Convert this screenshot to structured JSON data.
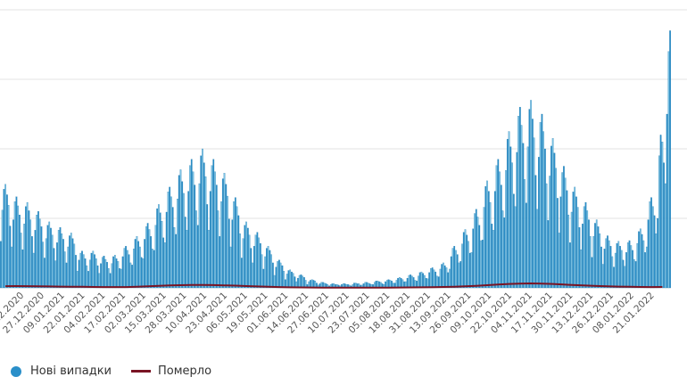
{
  "chart_data": {
    "type": "bar",
    "grid": true,
    "ylim": [
      0,
      41000
    ],
    "gridlines": [
      10000,
      20000,
      30000,
      40000
    ],
    "x_tick_labels": [
      "14.12.2020",
      "27.12.2020",
      "09.01.2021",
      "22.01.2021",
      "04.02.2021",
      "17.02.2021",
      "02.03.2021",
      "15.03.2021",
      "28.03.2021",
      "10.04.2021",
      "23.04.2021",
      "06.05.2021",
      "19.05.2021",
      "01.06.2021",
      "14.06.2021",
      "27.06.2021",
      "10.07.2021",
      "23.07.2021",
      "05.08.2021",
      "18.08.2021",
      "31.08.2021",
      "13.09.2021",
      "26.09.2021",
      "09.10.2021",
      "22.10.2021",
      "04.11.2021",
      "17.11.2021",
      "30.11.2021",
      "13.12.2021",
      "26.12.2021",
      "08.01.2022",
      "21.01.2022"
    ],
    "legend_position": "bottom-left",
    "colors": {
      "cases": "#2a8fc9",
      "cases_light": "#7cc4e6",
      "deaths": "#7a1424",
      "grid": "#e3e3e3"
    },
    "series": [
      {
        "name": "Нові випадки",
        "type": "bar",
        "resolution": "daily",
        "values": [
          6700,
          11200,
          14200,
          14900,
          13400,
          11900,
          8900,
          5900,
          9800,
          12400,
          13100,
          11800,
          10500,
          7900,
          5500,
          9200,
          11700,
          12300,
          11100,
          9800,
          7400,
          5000,
          8300,
          10500,
          11000,
          9900,
          8800,
          6600,
          4300,
          7100,
          9000,
          9500,
          8600,
          7600,
          5700,
          3900,
          6500,
          8300,
          8700,
          7800,
          7000,
          5200,
          3600,
          5900,
          7500,
          7900,
          7100,
          6300,
          4700,
          2400,
          4000,
          5000,
          5300,
          4800,
          4200,
          3200,
          2400,
          4000,
          5000,
          5300,
          4800,
          4200,
          3200,
          2100,
          3500,
          4400,
          4600,
          4100,
          3700,
          2800,
          2100,
          3500,
          4500,
          4700,
          4200,
          3800,
          2800,
          2700,
          4500,
          5700,
          6000,
          5400,
          4800,
          3600,
          3300,
          5600,
          7000,
          7400,
          6700,
          5900,
          4400,
          4200,
          7000,
          8800,
          9300,
          8400,
          7400,
          5600,
          5400,
          9000,
          11400,
          12000,
          10800,
          9600,
          7200,
          6500,
          10900,
          13800,
          14500,
          13100,
          11600,
          8700,
          7700,
          12800,
          16200,
          17000,
          15300,
          13600,
          10200,
          8300,
          13900,
          17600,
          18500,
          16700,
          14800,
          11100,
          9000,
          15000,
          19000,
          20000,
          18000,
          16000,
          12000,
          8300,
          13900,
          17600,
          18500,
          16700,
          14800,
          11100,
          7400,
          12400,
          15700,
          16500,
          14900,
          13200,
          9900,
          5900,
          9800,
          12400,
          13000,
          11700,
          10400,
          7800,
          4300,
          7100,
          9000,
          9500,
          8600,
          7600,
          5700,
          3600,
          6000,
          7600,
          8000,
          7200,
          6400,
          4800,
          2700,
          4500,
          5700,
          6000,
          5400,
          4800,
          3600,
          1800,
          3000,
          3800,
          4000,
          3600,
          3200,
          2400,
          1200,
          2000,
          2500,
          2600,
          2300,
          2100,
          1600,
          900,
          1400,
          1800,
          1900,
          1700,
          1500,
          1100,
          500,
          900,
          1100,
          1200,
          1100,
          1000,
          700,
          400,
          600,
          800,
          800,
          700,
          600,
          500,
          300,
          500,
          600,
          600,
          500,
          500,
          400,
          300,
          500,
          600,
          600,
          500,
          500,
          400,
          300,
          500,
          700,
          700,
          600,
          600,
          400,
          400,
          600,
          800,
          800,
          700,
          600,
          500,
          500,
          800,
          1000,
          1000,
          900,
          800,
          600,
          500,
          900,
          1100,
          1200,
          1100,
          1000,
          700,
          700,
          1100,
          1400,
          1500,
          1400,
          1200,
          900,
          900,
          1400,
          1800,
          1900,
          1700,
          1500,
          1100,
          1000,
          1700,
          2200,
          2300,
          2100,
          1800,
          1400,
          1300,
          2200,
          2800,
          2900,
          2600,
          2300,
          1700,
          1600,
          2700,
          3400,
          3600,
          3200,
          2900,
          2200,
          2700,
          4500,
          5700,
          6000,
          5400,
          4800,
          3600,
          3800,
          6300,
          8000,
          8400,
          7600,
          6700,
          5000,
          5100,
          8500,
          10700,
          11300,
          10200,
          9000,
          6800,
          6900,
          11600,
          14600,
          15400,
          13900,
          12300,
          9200,
          8300,
          13900,
          17600,
          18500,
          16700,
          14800,
          11100,
          10100,
          16900,
          21400,
          22500,
          20300,
          18000,
          13500,
          11700,
          19500,
          24700,
          26000,
          23400,
          20800,
          15600,
          12200,
          20300,
          25700,
          27000,
          24300,
          21600,
          16200,
          11300,
          18800,
          23800,
          25000,
          22500,
          20000,
          15000,
          9700,
          16100,
          20400,
          21500,
          19400,
          17200,
          12900,
          7900,
          13100,
          16600,
          17500,
          15800,
          14000,
          10500,
          6500,
          10900,
          13800,
          14500,
          13100,
          11600,
          8700,
          5500,
          9200,
          11700,
          12300,
          11100,
          9800,
          7400,
          4400,
          7400,
          9300,
          9800,
          8800,
          7800,
          5900,
          3400,
          5600,
          7100,
          7500,
          6800,
          6000,
          4500,
          3000,
          5000,
          6400,
          6700,
          6000,
          5400,
          4000,
          3100,
          5100,
          6500,
          6800,
          6100,
          5400,
          4100,
          3800,
          6400,
          8100,
          8500,
          7700,
          6800,
          5100,
          5900,
          9800,
          12400,
          13000,
          11700,
          10400,
          7800,
          10000,
          19000,
          22000,
          21000,
          18000,
          15000,
          25000,
          34000,
          37000
        ]
      },
      {
        "name": "Померло",
        "type": "line",
        "resolution": "weekly",
        "values": [
          250,
          260,
          240,
          220,
          200,
          180,
          170,
          150,
          130,
          120,
          110,
          120,
          150,
          220,
          290,
          340,
          390,
          410,
          420,
          400,
          360,
          320,
          260,
          200,
          150,
          110,
          80,
          60,
          50,
          40,
          35,
          30,
          30,
          30,
          35,
          40,
          50,
          60,
          80,
          100,
          130,
          160,
          220,
          300,
          380,
          470,
          560,
          620,
          640,
          620,
          560,
          480,
          400,
          330,
          270,
          220,
          180,
          150,
          130,
          120,
          130
        ]
      }
    ]
  },
  "legend": {
    "cases_label": "Нові випадки",
    "deaths_label": "Померло"
  }
}
